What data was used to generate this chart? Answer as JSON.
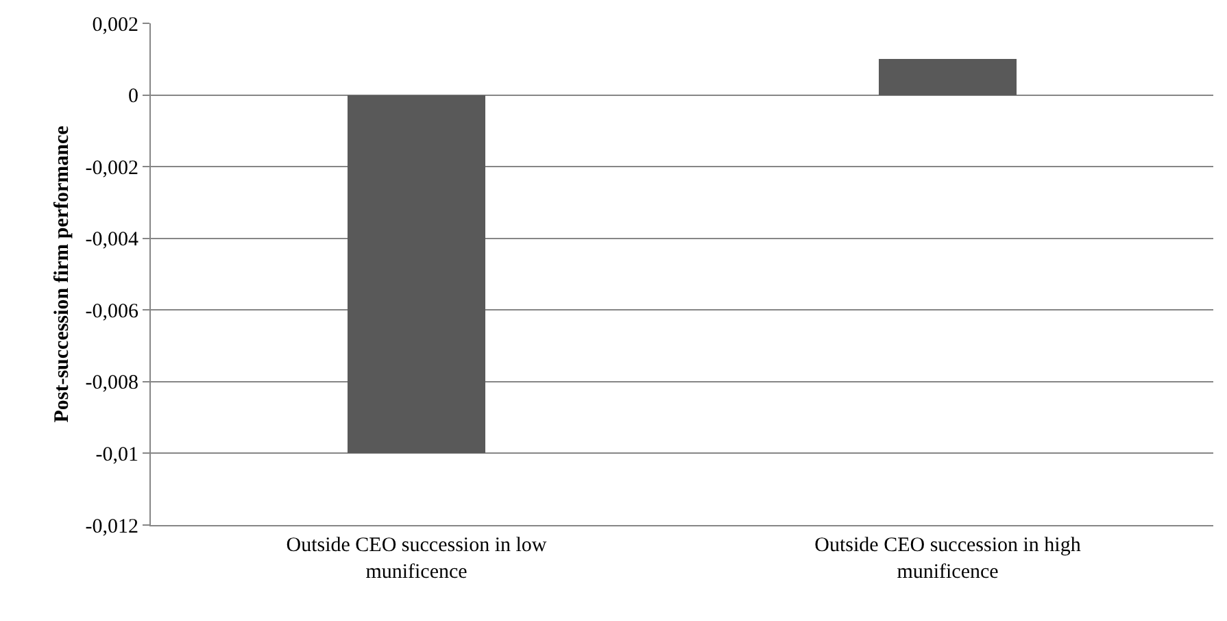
{
  "chart_data": {
    "type": "bar",
    "ylabel": "Post-succession firm performance",
    "categories": [
      "Outside CEO succession in low munificence",
      "Outside CEO succession in high munificence"
    ],
    "values": [
      -0.01,
      0.001
    ],
    "color": "#595959",
    "ylim": [
      -0.012,
      0.002
    ],
    "yticks": [
      {
        "value": -0.012,
        "label": "-0,012"
      },
      {
        "value": -0.01,
        "label": "-0,01"
      },
      {
        "value": -0.008,
        "label": "-0,008"
      },
      {
        "value": -0.006,
        "label": "-0,006"
      },
      {
        "value": -0.004,
        "label": "-0,004"
      },
      {
        "value": -0.002,
        "label": "-0,002"
      },
      {
        "value": 0,
        "label": "0"
      },
      {
        "value": 0.002,
        "label": "0,002"
      }
    ],
    "grid": "y",
    "legend": false
  }
}
